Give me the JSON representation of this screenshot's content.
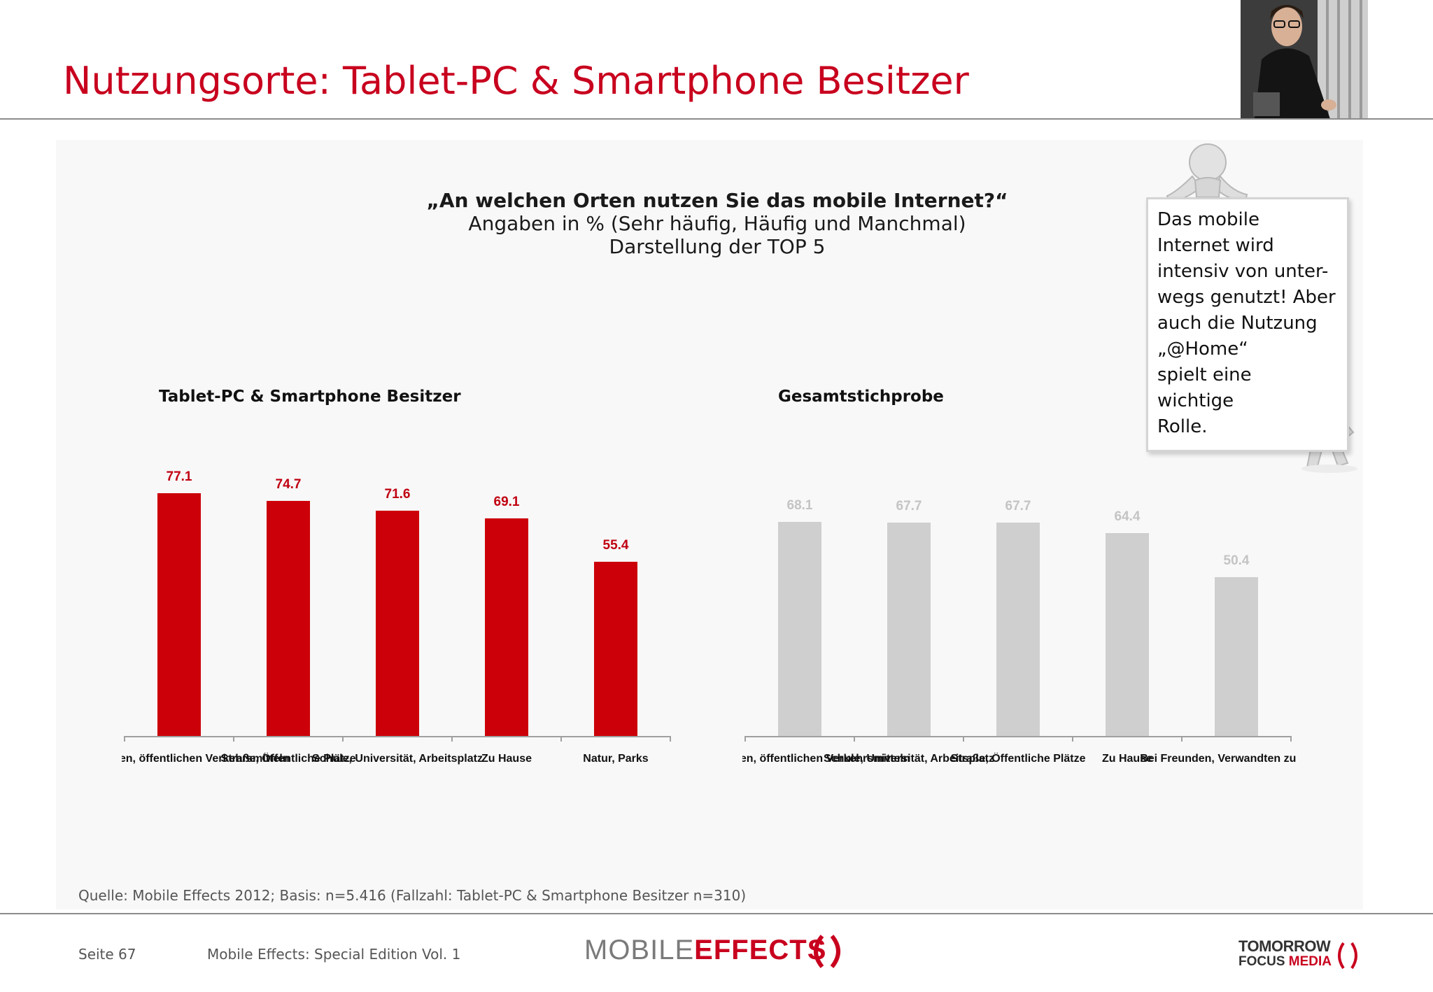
{
  "header": {
    "title": "Nutzungsorte: Tablet-PC & Smartphone Besitzer"
  },
  "question": {
    "line1": "„An welchen Orten nutzen Sie das mobile Internet?“",
    "line2": "Angaben in % (Sehr häufig, Häufig und Manchmal)",
    "line3": "Darstellung der TOP 5"
  },
  "note": {
    "text": "Das mobile\nInternet wird\nintensiv von unter-\nwegs genutzt! Aber\nauch die Nutzung\n„@Home“\nspielt eine\nwichtige\nRolle."
  },
  "colors": {
    "accent_red": "#c8001e",
    "bar_red": "#cc0008",
    "bar_grey": "#cfcfcf"
  },
  "chart_data": [
    {
      "type": "bar",
      "title": "Tablet-PC & Smartphone Besitzer",
      "categories": [
        "Bahnhöfen, öffentlichen Verkehrsmitteln",
        "Straße, Öffentliche Plätze",
        "Schule, Universität, Arbeitsplatz",
        "Zu Hause",
        "Natur, Parks"
      ],
      "values": [
        77.1,
        74.7,
        71.6,
        69.1,
        55.4
      ],
      "value_labels": [
        "77.1",
        "74.7",
        "71.6",
        "69.1",
        "55.4"
      ],
      "ylim": [
        0,
        100
      ],
      "grid": false,
      "color": "#cc0008"
    },
    {
      "type": "bar",
      "title": "Gesamtstichprobe",
      "categories": [
        "Bahnhöfen, öffentlichen Verkehrsmitteln",
        "Schule, Universität, Arbeitsplatz",
        "Straße, Öffentliche Plätze",
        "Zu Hause",
        "Bei Freunden, Verwandten zu Hause"
      ],
      "values": [
        68.1,
        67.7,
        67.7,
        64.4,
        50.4
      ],
      "value_labels": [
        "68.1",
        "67.7",
        "67.7",
        "64.4",
        "50.4"
      ],
      "ylim": [
        0,
        100
      ],
      "grid": false,
      "color": "#cfcfcf"
    }
  ],
  "footer": {
    "source": "Quelle: Mobile Effects 2012; Basis: n=5.416 (Fallzahl: Tablet-PC & Smartphone Besitzer n=310)",
    "page": "Seite 67",
    "publication": "Mobile Effects: Special Edition Vol. 1",
    "logo_left_a": "MOBILE",
    "logo_left_b": "EFFECTS",
    "logo_right_line1": "TOMORROW",
    "logo_right_line2a": "FOCUS",
    "logo_right_line2b": "MEDIA"
  },
  "icons": {
    "photo": "person-with-tablet-photo",
    "figure_top": "white-3d-figure-peeking-icon",
    "figure_bottom": "white-3d-figure-pointing-icon"
  }
}
